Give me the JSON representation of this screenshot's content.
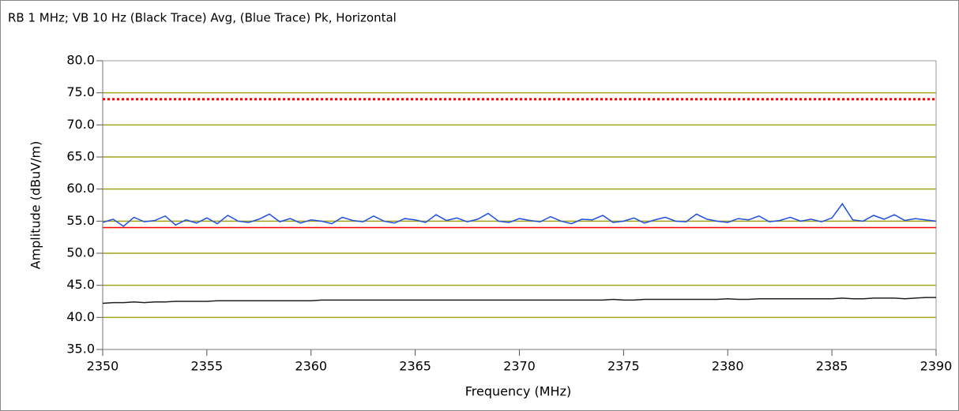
{
  "chart_data": {
    "type": "line",
    "title": "RB 1 MHz; VB 10 Hz (Black Trace) Avg, (Blue Trace) Pk, Horizontal",
    "xlabel": "Frequency (MHz)",
    "ylabel": "Amplitude (dBuV/m)",
    "xlim": [
      2350,
      2390
    ],
    "xticks": [
      2350,
      2355,
      2360,
      2365,
      2370,
      2375,
      2380,
      2385,
      2390
    ],
    "ylim": [
      35,
      80
    ],
    "yticks": [
      {
        "value": 35,
        "label": "35.0"
      },
      {
        "value": 40,
        "label": "40.0"
      },
      {
        "value": 45,
        "label": "45.0"
      },
      {
        "value": 50,
        "label": "50.0"
      },
      {
        "value": 55,
        "label": "55.0"
      },
      {
        "value": 60,
        "label": "60.0"
      },
      {
        "value": 65,
        "label": "65.0"
      },
      {
        "value": 70,
        "label": "70.0"
      },
      {
        "value": 75,
        "label": "75.0"
      },
      {
        "value": 80,
        "label": "80.0"
      }
    ],
    "grid": true,
    "grid_color": "#a3a31a",
    "reference_lines": [
      {
        "value": 74,
        "color": "#ff0000",
        "dash": "dotted"
      },
      {
        "value": 54,
        "color": "#ff0000",
        "dash": "solid"
      }
    ],
    "x": [
      2350,
      2350.5,
      2351,
      2351.5,
      2352,
      2352.5,
      2353,
      2353.5,
      2354,
      2354.5,
      2355,
      2355.5,
      2356,
      2356.5,
      2357,
      2357.5,
      2358,
      2358.5,
      2359,
      2359.5,
      2360,
      2360.5,
      2361,
      2361.5,
      2362,
      2362.5,
      2363,
      2363.5,
      2364,
      2364.5,
      2365,
      2365.5,
      2366,
      2366.5,
      2367,
      2367.5,
      2368,
      2368.5,
      2369,
      2369.5,
      2370,
      2370.5,
      2371,
      2371.5,
      2372,
      2372.5,
      2373,
      2373.5,
      2374,
      2374.5,
      2375,
      2375.5,
      2376,
      2376.5,
      2377,
      2377.5,
      2378,
      2378.5,
      2379,
      2379.5,
      2380,
      2380.5,
      2381,
      2381.5,
      2382,
      2382.5,
      2383,
      2383.5,
      2384,
      2384.5,
      2385,
      2385.5,
      2386,
      2386.5,
      2387,
      2387.5,
      2388,
      2388.5,
      2389,
      2389.5,
      2390
    ],
    "series": [
      {
        "color": "#1f4fe0",
        "values": [
          54.8,
          55.3,
          54.2,
          55.6,
          54.9,
          55.1,
          55.8,
          54.4,
          55.2,
          54.7,
          55.5,
          54.6,
          55.9,
          55.0,
          54.8,
          55.3,
          56.1,
          54.9,
          55.4,
          54.7,
          55.2,
          55.0,
          54.6,
          55.6,
          55.1,
          54.9,
          55.8,
          55.0,
          54.7,
          55.4,
          55.2,
          54.8,
          56.0,
          55.1,
          55.5,
          54.9,
          55.3,
          56.2,
          55.0,
          54.8,
          55.4,
          55.1,
          54.9,
          55.7,
          55.0,
          54.6,
          55.3,
          55.2,
          55.9,
          54.8,
          55.0,
          55.5,
          54.7,
          55.2,
          55.6,
          55.0,
          54.9,
          56.1,
          55.3,
          55.0,
          54.8,
          55.4,
          55.2,
          55.8,
          54.9,
          55.1,
          55.6,
          55.0,
          55.3,
          54.9,
          55.5,
          57.7,
          55.2,
          55.0,
          55.9,
          55.3,
          56.0,
          55.1,
          55.4,
          55.2,
          55.0
        ]
      },
      {
        "color": "#202020",
        "values": [
          42.2,
          42.3,
          42.3,
          42.4,
          42.3,
          42.4,
          42.4,
          42.5,
          42.5,
          42.5,
          42.5,
          42.6,
          42.6,
          42.6,
          42.6,
          42.6,
          42.6,
          42.6,
          42.6,
          42.6,
          42.6,
          42.7,
          42.7,
          42.7,
          42.7,
          42.7,
          42.7,
          42.7,
          42.7,
          42.7,
          42.7,
          42.7,
          42.7,
          42.7,
          42.7,
          42.7,
          42.7,
          42.7,
          42.7,
          42.7,
          42.7,
          42.7,
          42.7,
          42.7,
          42.7,
          42.7,
          42.7,
          42.7,
          42.7,
          42.8,
          42.7,
          42.7,
          42.8,
          42.8,
          42.8,
          42.8,
          42.8,
          42.8,
          42.8,
          42.8,
          42.9,
          42.8,
          42.8,
          42.9,
          42.9,
          42.9,
          42.9,
          42.9,
          42.9,
          42.9,
          42.9,
          43.0,
          42.9,
          42.9,
          43.0,
          43.0,
          43.0,
          42.9,
          43.0,
          43.1,
          43.1
        ]
      }
    ]
  }
}
